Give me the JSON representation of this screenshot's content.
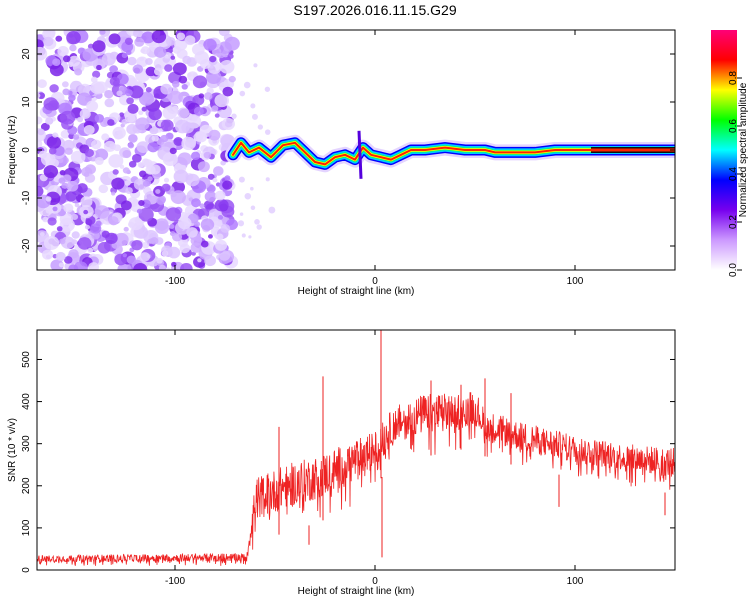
{
  "title": "S197.2026.016.11.15.G29",
  "chart_data": [
    {
      "type": "heatmap",
      "name": "spectrogram",
      "xlabel": "Height of straight line (km)",
      "ylabel": "Frequency (Hz)",
      "xlim": [
        -169,
        150
      ],
      "ylim": [
        -25,
        25
      ],
      "xticks": [
        -100,
        0,
        100
      ],
      "yticks": [
        -20,
        -10,
        0,
        10,
        20
      ],
      "noise_region_x": [
        -169,
        -71
      ],
      "trace": [
        {
          "x": -71,
          "y": -1.0
        },
        {
          "x": -67,
          "y": 1.5
        },
        {
          "x": -63,
          "y": -0.5
        },
        {
          "x": -58,
          "y": 0.5
        },
        {
          "x": -52,
          "y": -1.5
        },
        {
          "x": -46,
          "y": 1.0
        },
        {
          "x": -40,
          "y": 1.5
        },
        {
          "x": -35,
          "y": -0.5
        },
        {
          "x": -30,
          "y": -2.5
        },
        {
          "x": -25,
          "y": -3.0
        },
        {
          "x": -20,
          "y": -1.5
        },
        {
          "x": -15,
          "y": -1.0
        },
        {
          "x": -10,
          "y": -2.0
        },
        {
          "x": -6,
          "y": 0.5
        },
        {
          "x": -2,
          "y": -1.0
        },
        {
          "x": 3,
          "y": -1.5
        },
        {
          "x": 8,
          "y": -2.0
        },
        {
          "x": 13,
          "y": -1.0
        },
        {
          "x": 18,
          "y": 0.0
        },
        {
          "x": 25,
          "y": 0.0
        },
        {
          "x": 35,
          "y": 0.5
        },
        {
          "x": 45,
          "y": 0.0
        },
        {
          "x": 55,
          "y": 0.0
        },
        {
          "x": 60,
          "y": -0.5
        },
        {
          "x": 70,
          "y": -0.5
        },
        {
          "x": 80,
          "y": -0.5
        },
        {
          "x": 90,
          "y": 0.0
        },
        {
          "x": 100,
          "y": 0.0
        },
        {
          "x": 110,
          "y": 0.0
        },
        {
          "x": 130,
          "y": 0.0
        },
        {
          "x": 150,
          "y": 0.0
        }
      ],
      "colorbar": {
        "label": "Normalized spectral amplitude",
        "ticks": [
          "0.0",
          "0.2",
          "0.4",
          "0.6",
          "0.8"
        ],
        "tick_values": [
          0.0,
          0.2,
          0.4,
          0.6,
          0.8
        ],
        "range": [
          0,
          1
        ],
        "colors": [
          "#ffffff",
          "#cc99ff",
          "#7700ee",
          "#0000ff",
          "#00ffff",
          "#00ff00",
          "#ffff00",
          "#ff0000",
          "#ff0077"
        ]
      }
    },
    {
      "type": "line",
      "name": "snr",
      "xlabel": "Height of straight line (km)",
      "ylabel": "SNR (10 * v/v)",
      "xlim": [
        -169,
        150
      ],
      "ylim": [
        0,
        570
      ],
      "xticks": [
        -100,
        0,
        100
      ],
      "yticks": [
        0,
        100,
        200,
        300,
        400,
        500
      ],
      "color": "#ee2222",
      "envelope": [
        {
          "x": -169,
          "low": 10,
          "high": 35
        },
        {
          "x": -64,
          "low": 10,
          "high": 40
        },
        {
          "x": -60,
          "low": 60,
          "high": 220
        },
        {
          "x": -45,
          "low": 90,
          "high": 250
        },
        {
          "x": -30,
          "low": 110,
          "high": 270
        },
        {
          "x": -15,
          "low": 140,
          "high": 300
        },
        {
          "x": 0,
          "low": 200,
          "high": 330
        },
        {
          "x": 10,
          "low": 260,
          "high": 390
        },
        {
          "x": 25,
          "low": 270,
          "high": 420
        },
        {
          "x": 40,
          "low": 280,
          "high": 420
        },
        {
          "x": 50,
          "low": 300,
          "high": 430
        },
        {
          "x": 55,
          "low": 270,
          "high": 380
        },
        {
          "x": 75,
          "low": 240,
          "high": 350
        },
        {
          "x": 100,
          "low": 220,
          "high": 320
        },
        {
          "x": 125,
          "low": 200,
          "high": 300
        },
        {
          "x": 150,
          "low": 180,
          "high": 290
        }
      ],
      "spikes": [
        {
          "x": -26,
          "y": 460
        },
        {
          "x": 3,
          "y": 570
        },
        {
          "x": 3.5,
          "y": 30
        },
        {
          "x": -33,
          "y": 60
        },
        {
          "x": 55,
          "y": 455
        },
        {
          "x": 43,
          "y": 440
        },
        {
          "x": 68,
          "y": 420
        },
        {
          "x": 28,
          "y": 450
        },
        {
          "x": 92,
          "y": 150
        },
        {
          "x": 145,
          "y": 130
        },
        {
          "x": -48,
          "y": 340
        }
      ]
    }
  ]
}
